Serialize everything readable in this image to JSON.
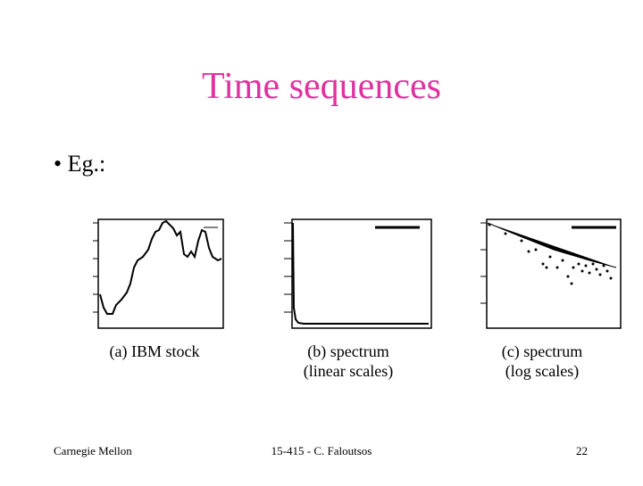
{
  "header": {
    "title": "Time sequences"
  },
  "body": {
    "bullet": "• Eg.:",
    "figures": [
      {
        "caption": [
          "(a) IBM stock"
        ]
      },
      {
        "caption": [
          "(b) spectrum",
          "(linear scales)"
        ]
      },
      {
        "caption": [
          "(c) spectrum",
          "(log scales)"
        ]
      }
    ]
  },
  "footer": {
    "left": "Carnegie Mellon",
    "center": "15-415 - C. Faloutsos",
    "page": "22"
  }
}
